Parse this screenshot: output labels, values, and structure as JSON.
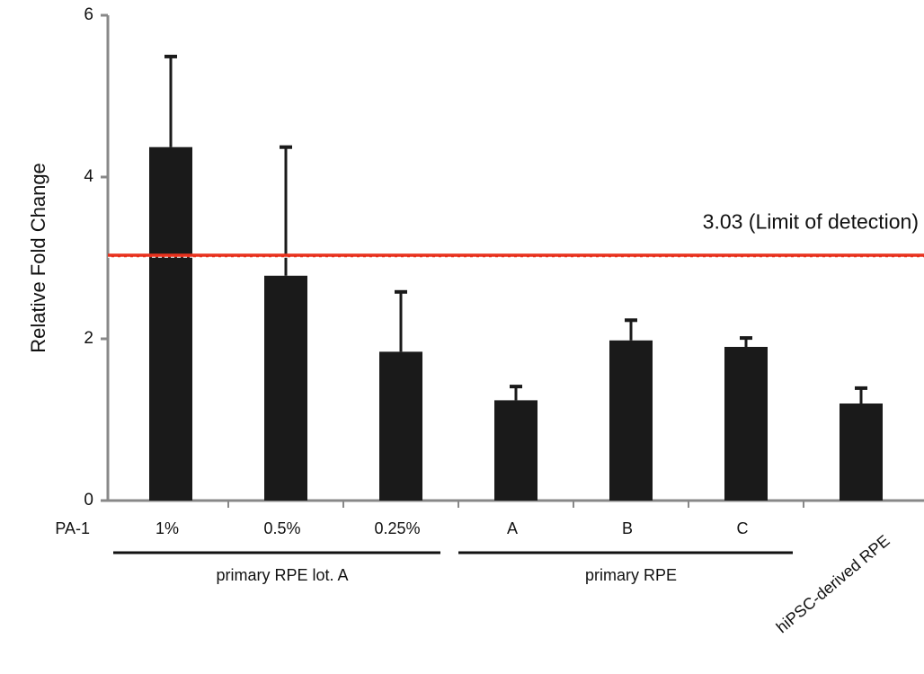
{
  "chart_data": {
    "type": "bar",
    "y_label": "Relative Fold Change",
    "row_label": "PA-1",
    "categories": [
      "1%",
      "0.5%",
      "0.25%",
      "A",
      "B",
      "C",
      "hiPSC-derived RPE"
    ],
    "values": [
      4.37,
      2.78,
      1.84,
      1.24,
      1.98,
      1.9,
      1.2
    ],
    "errors": [
      1.12,
      1.59,
      0.74,
      0.17,
      0.25,
      0.11,
      0.19
    ],
    "color": "#1a1a1a",
    "groups": [
      "primary RPE lot. A",
      "primary RPE"
    ],
    "threshold": {
      "value": 3.03,
      "label": "3.03 (Limit of detection)",
      "color": "#e8321e"
    },
    "ylim": [
      0,
      6
    ],
    "yticks": [
      0,
      2,
      4,
      6
    ],
    "grid": false
  }
}
